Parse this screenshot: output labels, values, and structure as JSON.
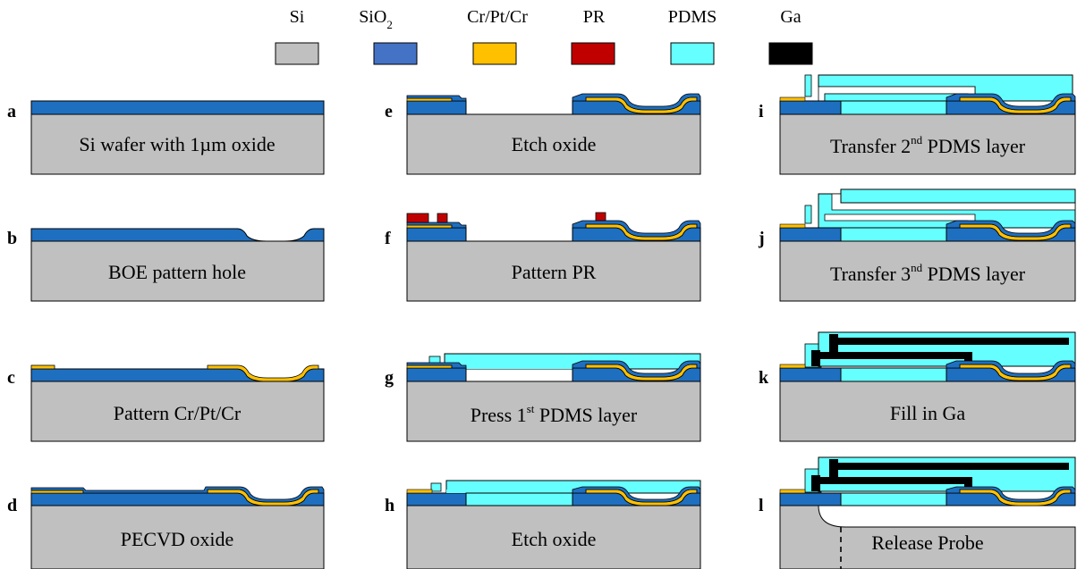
{
  "legend": [
    {
      "label": "Si",
      "color": "#c0c0c0"
    },
    {
      "label": "SiO",
      "sub": "2",
      "color": "#4472c4"
    },
    {
      "label": "Cr/Pt/Cr",
      "color": "#ffc000"
    },
    {
      "label": "PR",
      "color": "#c00000"
    },
    {
      "label": "PDMS",
      "color": "#66ffff"
    },
    {
      "label": "Ga",
      "color": "#000000"
    }
  ],
  "colors": {
    "si": "#c0c0c0",
    "oxide": "#1e6fc0",
    "metal": "#ffc000",
    "pr": "#c00000",
    "pdms": "#66ffff",
    "ga": "#000000"
  },
  "steps": [
    {
      "letter": "a",
      "caption": "Si wafer with 1µm oxide"
    },
    {
      "letter": "b",
      "caption": "BOE pattern hole"
    },
    {
      "letter": "c",
      "caption": "Pattern Cr/Pt/Cr"
    },
    {
      "letter": "d",
      "caption": "PECVD oxide"
    },
    {
      "letter": "e",
      "caption": "Etch oxide"
    },
    {
      "letter": "f",
      "caption": "Pattern PR"
    },
    {
      "letter": "g",
      "caption_pre": "Press 1",
      "sup": "st",
      "caption_post": " PDMS layer"
    },
    {
      "letter": "h",
      "caption": "Etch oxide"
    },
    {
      "letter": "i",
      "caption_pre": "Transfer 2",
      "sup": "nd",
      "caption_post": " PDMS layer"
    },
    {
      "letter": "j",
      "caption_pre": "Transfer 3",
      "sup": "nd",
      "caption_post": " PDMS layer"
    },
    {
      "letter": "k",
      "caption": "Fill in Ga"
    },
    {
      "letter": "l",
      "caption": "Release Probe"
    }
  ]
}
